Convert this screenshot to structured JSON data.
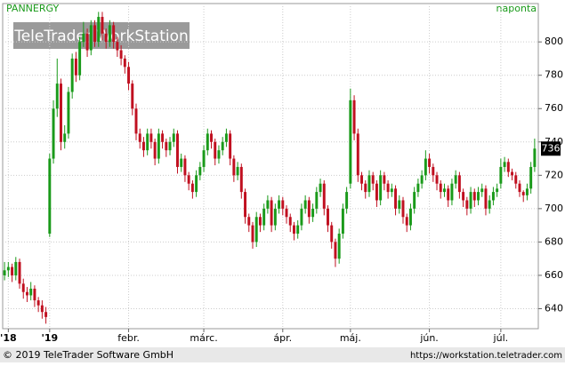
{
  "chart_data": {
    "type": "candlestick",
    "title": "PANNERGY",
    "interval": "naponta",
    "watermark": "TeleTrader WorkStation",
    "footer_left": "© 2019 TeleTrader Software GmbH",
    "footer_right": "https://workstation.teletrader.com",
    "up_color": "#1a9a1a",
    "down_color": "#c01020",
    "grid": true,
    "ylim": [
      628,
      823
    ],
    "yticks": [
      640,
      660,
      680,
      700,
      720,
      740,
      760,
      780,
      800
    ],
    "xlim": [
      0,
      142
    ],
    "xticks": [
      {
        "value": 1,
        "label": "'18"
      },
      {
        "value": 12,
        "label": "'19"
      },
      {
        "value": 33,
        "label": "febr."
      },
      {
        "value": 53,
        "label": "márc."
      },
      {
        "value": 74,
        "label": "ápr."
      },
      {
        "value": 92,
        "label": "máj."
      },
      {
        "value": 113,
        "label": "jún."
      },
      {
        "value": 132,
        "label": "júl."
      }
    ],
    "ohlc": [
      [
        660,
        668,
        657,
        663
      ],
      [
        663,
        668,
        659,
        665
      ],
      [
        665,
        667,
        656,
        660
      ],
      [
        660,
        671,
        657,
        668
      ],
      [
        668,
        670,
        652,
        655
      ],
      [
        655,
        658,
        646,
        650
      ],
      [
        650,
        653,
        644,
        648
      ],
      [
        648,
        656,
        645,
        652
      ],
      [
        652,
        654,
        641,
        645
      ],
      [
        645,
        647,
        638,
        642
      ],
      [
        642,
        645,
        634,
        638
      ],
      [
        638,
        641,
        631,
        635
      ],
      [
        685,
        733,
        683,
        730
      ],
      [
        730,
        765,
        727,
        760
      ],
      [
        760,
        790,
        755,
        775
      ],
      [
        775,
        778,
        735,
        740
      ],
      [
        740,
        750,
        736,
        745
      ],
      [
        745,
        773,
        742,
        770
      ],
      [
        770,
        793,
        766,
        790
      ],
      [
        790,
        794,
        776,
        780
      ],
      [
        780,
        803,
        777,
        800
      ],
      [
        800,
        812,
        797,
        805
      ],
      [
        805,
        808,
        791,
        795
      ],
      [
        795,
        813,
        792,
        810
      ],
      [
        810,
        813,
        797,
        800
      ],
      [
        800,
        818,
        797,
        815
      ],
      [
        815,
        818,
        801,
        805
      ],
      [
        805,
        808,
        796,
        800
      ],
      [
        800,
        813,
        797,
        810
      ],
      [
        810,
        812,
        796,
        800
      ],
      [
        800,
        803,
        791,
        795
      ],
      [
        795,
        798,
        786,
        790
      ],
      [
        790,
        792,
        781,
        785
      ],
      [
        785,
        788,
        771,
        775
      ],
      [
        775,
        777,
        756,
        760
      ],
      [
        760,
        763,
        741,
        745
      ],
      [
        745,
        748,
        736,
        740
      ],
      [
        740,
        743,
        731,
        735
      ],
      [
        735,
        748,
        732,
        745
      ],
      [
        745,
        748,
        736,
        740
      ],
      [
        740,
        742,
        726,
        730
      ],
      [
        730,
        748,
        727,
        745
      ],
      [
        745,
        747,
        736,
        740
      ],
      [
        740,
        742,
        731,
        735
      ],
      [
        735,
        743,
        732,
        740
      ],
      [
        740,
        748,
        737,
        745
      ],
      [
        745,
        747,
        721,
        725
      ],
      [
        725,
        733,
        722,
        730
      ],
      [
        730,
        732,
        716,
        720
      ],
      [
        720,
        722,
        711,
        715
      ],
      [
        715,
        717,
        706,
        710
      ],
      [
        710,
        723,
        707,
        720
      ],
      [
        720,
        728,
        717,
        725
      ],
      [
        725,
        738,
        722,
        735
      ],
      [
        735,
        748,
        732,
        745
      ],
      [
        745,
        747,
        736,
        740
      ],
      [
        740,
        742,
        726,
        730
      ],
      [
        730,
        738,
        727,
        735
      ],
      [
        735,
        743,
        732,
        740
      ],
      [
        740,
        748,
        737,
        745
      ],
      [
        745,
        747,
        726,
        730
      ],
      [
        730,
        732,
        716,
        720
      ],
      [
        720,
        728,
        717,
        725
      ],
      [
        725,
        727,
        706,
        710
      ],
      [
        710,
        712,
        691,
        695
      ],
      [
        695,
        697,
        686,
        690
      ],
      [
        690,
        692,
        676,
        680
      ],
      [
        680,
        698,
        677,
        695
      ],
      [
        695,
        697,
        686,
        690
      ],
      [
        690,
        703,
        687,
        700
      ],
      [
        700,
        708,
        697,
        705
      ],
      [
        705,
        707,
        686,
        690
      ],
      [
        690,
        703,
        687,
        700
      ],
      [
        700,
        708,
        697,
        705
      ],
      [
        705,
        707,
        696,
        700
      ],
      [
        700,
        702,
        691,
        695
      ],
      [
        695,
        697,
        686,
        690
      ],
      [
        690,
        692,
        681,
        685
      ],
      [
        685,
        693,
        682,
        690
      ],
      [
        690,
        703,
        687,
        700
      ],
      [
        700,
        708,
        697,
        705
      ],
      [
        705,
        707,
        691,
        695
      ],
      [
        695,
        703,
        692,
        700
      ],
      [
        700,
        713,
        697,
        710
      ],
      [
        710,
        718,
        707,
        715
      ],
      [
        715,
        717,
        696,
        700
      ],
      [
        700,
        702,
        686,
        690
      ],
      [
        690,
        692,
        676,
        680
      ],
      [
        680,
        682,
        665,
        670
      ],
      [
        670,
        688,
        667,
        685
      ],
      [
        685,
        703,
        682,
        700
      ],
      [
        700,
        713,
        697,
        710
      ],
      [
        715,
        772,
        712,
        765
      ],
      [
        765,
        768,
        741,
        745
      ],
      [
        745,
        748,
        716,
        720
      ],
      [
        720,
        722,
        711,
        715
      ],
      [
        715,
        717,
        706,
        710
      ],
      [
        710,
        723,
        707,
        720
      ],
      [
        720,
        722,
        711,
        715
      ],
      [
        715,
        717,
        701,
        705
      ],
      [
        705,
        723,
        702,
        720
      ],
      [
        720,
        722,
        711,
        715
      ],
      [
        715,
        717,
        706,
        710
      ],
      [
        710,
        715,
        707,
        712
      ],
      [
        712,
        714,
        696,
        700
      ],
      [
        700,
        708,
        697,
        705
      ],
      [
        705,
        707,
        691,
        695
      ],
      [
        695,
        697,
        686,
        690
      ],
      [
        690,
        703,
        687,
        700
      ],
      [
        700,
        713,
        697,
        710
      ],
      [
        710,
        718,
        707,
        715
      ],
      [
        715,
        723,
        712,
        720
      ],
      [
        720,
        735,
        717,
        730
      ],
      [
        730,
        733,
        721,
        725
      ],
      [
        725,
        727,
        716,
        720
      ],
      [
        720,
        722,
        711,
        715
      ],
      [
        715,
        717,
        706,
        710
      ],
      [
        710,
        715,
        707,
        712
      ],
      [
        712,
        714,
        701,
        705
      ],
      [
        705,
        718,
        702,
        715
      ],
      [
        715,
        723,
        712,
        720
      ],
      [
        720,
        722,
        706,
        710
      ],
      [
        710,
        712,
        701,
        705
      ],
      [
        705,
        707,
        696,
        700
      ],
      [
        700,
        713,
        697,
        710
      ],
      [
        710,
        712,
        701,
        705
      ],
      [
        705,
        713,
        702,
        710
      ],
      [
        710,
        715,
        707,
        712
      ],
      [
        712,
        714,
        696,
        700
      ],
      [
        700,
        708,
        697,
        705
      ],
      [
        705,
        713,
        702,
        710
      ],
      [
        710,
        715,
        707,
        712
      ],
      [
        715,
        730,
        712,
        725
      ],
      [
        725,
        731,
        722,
        728
      ],
      [
        728,
        730,
        719,
        722
      ],
      [
        722,
        724,
        717,
        720
      ],
      [
        720,
        722,
        712,
        715
      ],
      [
        715,
        717,
        707,
        710
      ],
      [
        710,
        711,
        704,
        708
      ],
      [
        708,
        715,
        705,
        712
      ],
      [
        712,
        728,
        709,
        725
      ],
      [
        725,
        742,
        722,
        736
      ]
    ]
  }
}
